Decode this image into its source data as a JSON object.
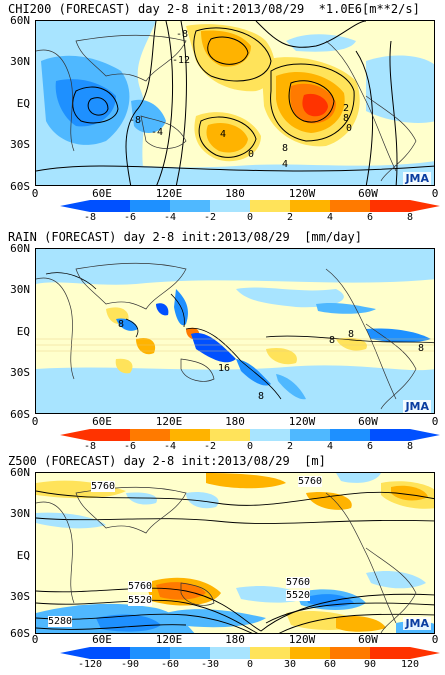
{
  "panels": [
    {
      "title": "CHI200 (FORECAST) day 2-8 init:2013/08/29  *1.0E6[m**2/s]",
      "lat_labels": [
        "60N",
        "30N",
        "EQ",
        "30S",
        "60S"
      ],
      "lon_labels": [
        "0",
        "60E",
        "120E",
        "180",
        "120W",
        "60W",
        "0"
      ],
      "logo": "JMA",
      "colorbar_ticks": [
        "-8",
        "-6",
        "-4",
        "-2",
        "0",
        "2",
        "4",
        "6",
        "8"
      ],
      "contour_labels": [
        "-8",
        "-12",
        "-8",
        "-4",
        "0",
        "4",
        "8",
        "2",
        "8",
        "0",
        "4"
      ],
      "colors": [
        "#0050ff",
        "#1e90ff",
        "#4fb8ff",
        "#a8e4ff",
        "#ffffcc",
        "#ffe35a",
        "#ffb300",
        "#ff7a00",
        "#ff3300"
      ]
    },
    {
      "title": "RAIN (FORECAST) day 2-8 init:2013/08/29  [mm/day]",
      "lat_labels": [
        "60N",
        "30N",
        "EQ",
        "30S",
        "60S"
      ],
      "lon_labels": [
        "0",
        "60E",
        "120E",
        "180",
        "120W",
        "60W",
        "0"
      ],
      "logo": "JMA",
      "colorbar_ticks": [
        "-8",
        "-6",
        "-4",
        "-2",
        "0",
        "2",
        "4",
        "6",
        "8"
      ],
      "contour_labels": [
        "8",
        "8",
        "16",
        "8",
        "8",
        "8"
      ],
      "colors": [
        "#ff3300",
        "#ff7a00",
        "#ffb300",
        "#ffe35a",
        "#ffffcc",
        "#a8e4ff",
        "#4fb8ff",
        "#1e90ff",
        "#0050ff"
      ]
    },
    {
      "title": "Z500 (FORECAST) day 2-8 init:2013/08/29  [m]",
      "lat_labels": [
        "60N",
        "30N",
        "EQ",
        "30S",
        "60S"
      ],
      "lon_labels": [
        "0",
        "60E",
        "120E",
        "180",
        "120W",
        "60W",
        "0"
      ],
      "logo": "JMA",
      "colorbar_ticks": [
        "-120",
        "-90",
        "-60",
        "-30",
        "0",
        "30",
        "60",
        "90",
        "120"
      ],
      "contour_labels": [
        "5760",
        "5760",
        "5760",
        "5520",
        "5760",
        "5520",
        "5280"
      ],
      "colors": [
        "#0050ff",
        "#1e90ff",
        "#4fb8ff",
        "#a8e4ff",
        "#ffffcc",
        "#ffe35a",
        "#ffb300",
        "#ff7a00",
        "#ff3300"
      ]
    }
  ]
}
